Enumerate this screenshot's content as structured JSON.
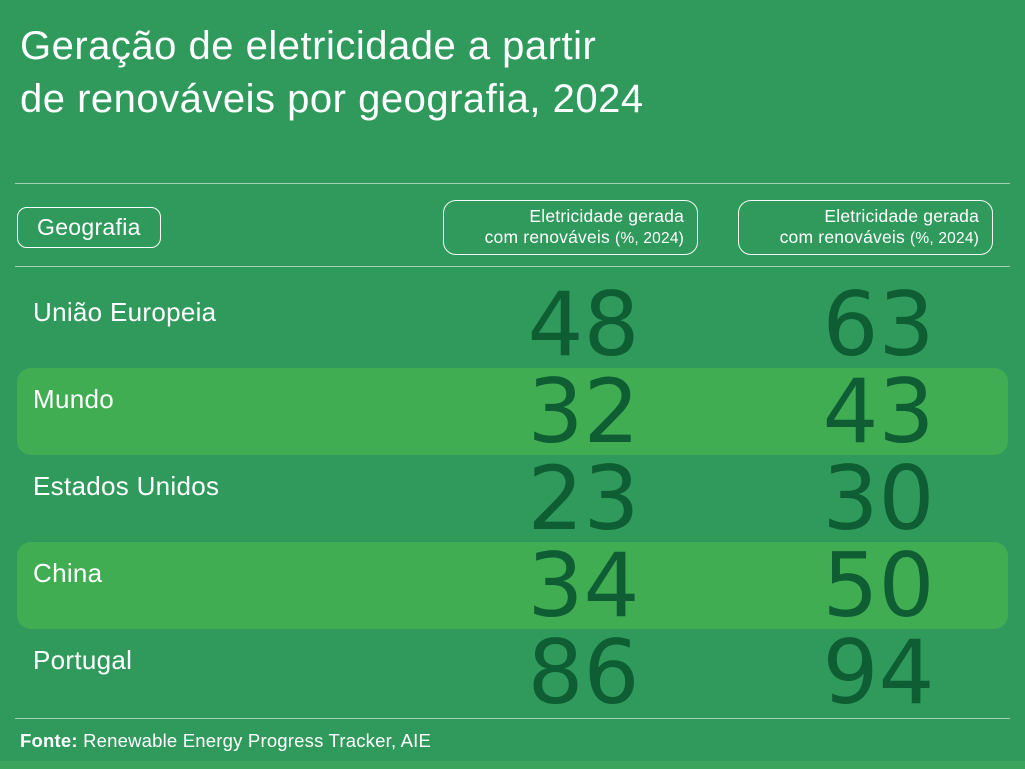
{
  "title": {
    "line1": "Geração de eletricidade a partir",
    "line2": "de renováveis por geografia, 2024"
  },
  "colors": {
    "background": "#2F9A5C",
    "row_highlight": "#41AD53",
    "number_ink": "#0E5D33",
    "bottom_strip": "#3BA55F",
    "text": "#FFFFFF"
  },
  "table": {
    "geography_label": "Geografia",
    "col1": {
      "line1": "Eletricidade gerada",
      "line2": "com renováveis",
      "paren": "(%, 2024)"
    },
    "col2": {
      "line1": "Eletricidade gerada",
      "line2": "com renováveis",
      "paren": "(%, 2024)"
    },
    "rows": [
      {
        "label": "União Europeia",
        "v1": "48",
        "v2": "63",
        "highlight": false
      },
      {
        "label": "Mundo",
        "v1": "32",
        "v2": "43",
        "highlight": true
      },
      {
        "label": "Estados Unidos",
        "v1": "23",
        "v2": "30",
        "highlight": false
      },
      {
        "label": "China",
        "v1": "34",
        "v2": "50",
        "highlight": true
      },
      {
        "label": "Portugal",
        "v1": "86",
        "v2": "94",
        "highlight": false
      }
    ]
  },
  "footer": {
    "label": "Fonte:",
    "text": "Renewable Energy Progress Tracker, AIE"
  },
  "chart_data": {
    "type": "table",
    "title": "Geração de eletricidade a partir de renováveis por geografia, 2024",
    "columns": [
      "Geografia",
      "Eletricidade gerada com renováveis (%, 2024)",
      "Eletricidade gerada com renováveis (%, 2024)"
    ],
    "rows": [
      [
        "União Europeia",
        48,
        63
      ],
      [
        "Mundo",
        32,
        43
      ],
      [
        "Estados Unidos",
        23,
        30
      ],
      [
        "China",
        34,
        50
      ],
      [
        "Portugal",
        86,
        94
      ]
    ],
    "highlighted_rows": [
      "Mundo",
      "China"
    ],
    "source": "Fonte: Renewable Energy Progress Tracker, AIE"
  }
}
